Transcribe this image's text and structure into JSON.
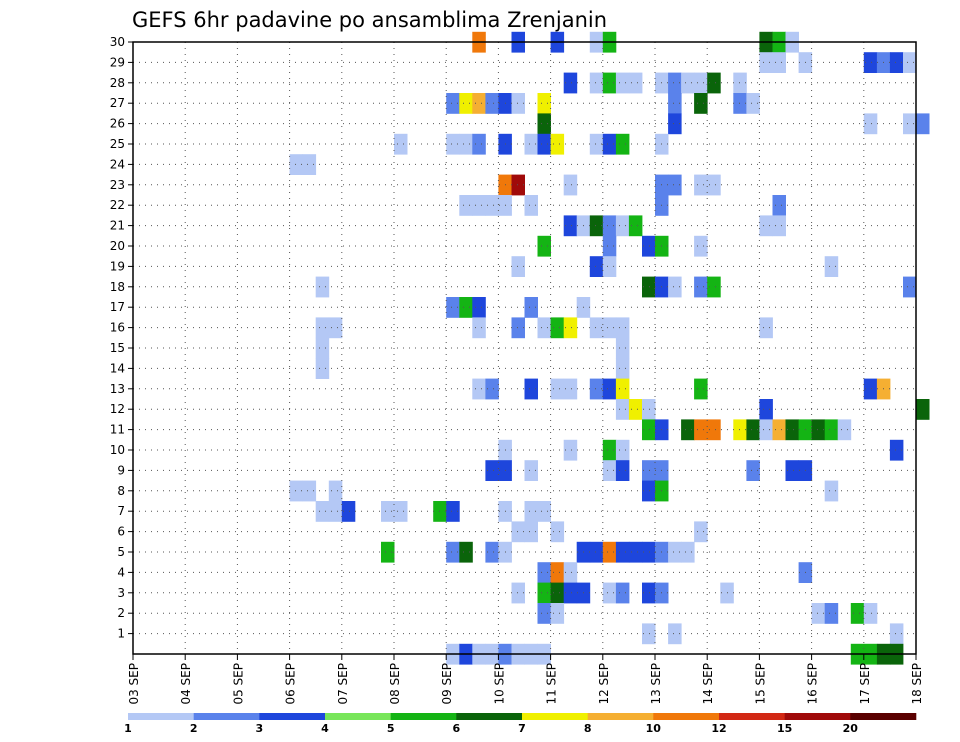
{
  "chart_data": {
    "type": "heatmap",
    "title": "GEFS 6hr padavine po ansamblima Zrenjanin",
    "xlabel": "",
    "ylabel": "",
    "x_ticks": [
      "03 SEP",
      "04 SEP",
      "05 SEP",
      "06 SEP",
      "07 SEP",
      "08 SEP",
      "09 SEP",
      "10 SEP",
      "11 SEP",
      "12 SEP",
      "13 SEP",
      "14 SEP",
      "15 SEP",
      "16 SEP",
      "17 SEP",
      "18 SEP"
    ],
    "y_ticks": [
      1,
      2,
      3,
      4,
      5,
      6,
      7,
      8,
      9,
      10,
      11,
      12,
      13,
      14,
      15,
      16,
      17,
      18,
      19,
      20,
      21,
      22,
      23,
      24,
      25,
      26,
      27,
      28,
      29,
      30
    ],
    "ylim": [
      0,
      30
    ],
    "grid": true,
    "time_step_hours": 6,
    "colorbar": {
      "labels": [
        "1",
        "2",
        "3",
        "4",
        "5",
        "6",
        "7",
        "8",
        "10",
        "12",
        "15",
        "20"
      ],
      "colors": [
        "#b4c8f5",
        "#5a82eb",
        "#1e46dc",
        "#78e65a",
        "#14b414",
        "#0a640a",
        "#f0f000",
        "#f5af32",
        "#f0780a",
        "#d22814",
        "#a00a0a",
        "#5a0000"
      ]
    },
    "cells": [
      [
        30,
        "09 SEP 12",
        10
      ],
      [
        30,
        "10 SEP 06",
        3
      ],
      [
        30,
        "11 SEP 00",
        3
      ],
      [
        30,
        "11 SEP 18",
        1
      ],
      [
        30,
        "12 SEP 00",
        5
      ],
      [
        30,
        "15 SEP 00",
        6
      ],
      [
        30,
        "15 SEP 06",
        5
      ],
      [
        30,
        "15 SEP 12",
        1
      ],
      [
        29,
        "15 SEP 00",
        1
      ],
      [
        29,
        "15 SEP 06",
        1
      ],
      [
        29,
        "15 SEP 18",
        1
      ],
      [
        29,
        "17 SEP 00",
        3
      ],
      [
        29,
        "17 SEP 06",
        2
      ],
      [
        29,
        "17 SEP 12",
        3
      ],
      [
        29,
        "17 SEP 18",
        1
      ],
      [
        28,
        "11 SEP 06",
        3
      ],
      [
        28,
        "11 SEP 18",
        1
      ],
      [
        28,
        "12 SEP 00",
        5
      ],
      [
        28,
        "12 SEP 06",
        1
      ],
      [
        28,
        "12 SEP 12",
        1
      ],
      [
        28,
        "13 SEP 00",
        1
      ],
      [
        28,
        "13 SEP 06",
        2
      ],
      [
        28,
        "13 SEP 12",
        1
      ],
      [
        28,
        "13 SEP 18",
        1
      ],
      [
        28,
        "14 SEP 00",
        6
      ],
      [
        28,
        "14 SEP 12",
        1
      ],
      [
        27,
        "09 SEP 00",
        2
      ],
      [
        27,
        "09 SEP 06",
        7
      ],
      [
        27,
        "09 SEP 12",
        8
      ],
      [
        27,
        "09 SEP 18",
        2
      ],
      [
        27,
        "10 SEP 00",
        3
      ],
      [
        27,
        "10 SEP 06",
        1
      ],
      [
        27,
        "10 SEP 18",
        7
      ],
      [
        27,
        "13 SEP 06",
        2
      ],
      [
        27,
        "13 SEP 18",
        6
      ],
      [
        27,
        "14 SEP 12",
        2
      ],
      [
        27,
        "14 SEP 18",
        1
      ],
      [
        26,
        "10 SEP 18",
        6
      ],
      [
        26,
        "13 SEP 06",
        3
      ],
      [
        26,
        "17 SEP 00",
        1
      ],
      [
        26,
        "17 SEP 18",
        1
      ],
      [
        26,
        "18 SEP 00",
        2
      ],
      [
        25,
        "08 SEP 00",
        1
      ],
      [
        25,
        "09 SEP 00",
        1
      ],
      [
        25,
        "09 SEP 06",
        1
      ],
      [
        25,
        "09 SEP 12",
        2
      ],
      [
        25,
        "10 SEP 00",
        3
      ],
      [
        25,
        "10 SEP 12",
        1
      ],
      [
        25,
        "10 SEP 18",
        3
      ],
      [
        25,
        "11 SEP 00",
        7
      ],
      [
        25,
        "11 SEP 18",
        1
      ],
      [
        25,
        "12 SEP 00",
        3
      ],
      [
        25,
        "12 SEP 06",
        5
      ],
      [
        25,
        "13 SEP 00",
        1
      ],
      [
        24,
        "06 SEP 00",
        1
      ],
      [
        24,
        "06 SEP 06",
        1
      ],
      [
        23,
        "10 SEP 00",
        10
      ],
      [
        23,
        "10 SEP 06",
        15
      ],
      [
        23,
        "11 SEP 06",
        1
      ],
      [
        23,
        "13 SEP 00",
        2
      ],
      [
        23,
        "13 SEP 06",
        2
      ],
      [
        23,
        "13 SEP 18",
        1
      ],
      [
        23,
        "14 SEP 00",
        1
      ],
      [
        22,
        "09 SEP 06",
        1
      ],
      [
        22,
        "09 SEP 12",
        1
      ],
      [
        22,
        "09 SEP 18",
        1
      ],
      [
        22,
        "10 SEP 00",
        1
      ],
      [
        22,
        "10 SEP 12",
        1
      ],
      [
        22,
        "13 SEP 00",
        2
      ],
      [
        22,
        "15 SEP 06",
        2
      ],
      [
        21,
        "11 SEP 06",
        3
      ],
      [
        21,
        "11 SEP 12",
        1
      ],
      [
        21,
        "11 SEP 18",
        6
      ],
      [
        21,
        "12 SEP 00",
        2
      ],
      [
        21,
        "12 SEP 06",
        1
      ],
      [
        21,
        "12 SEP 12",
        5
      ],
      [
        21,
        "15 SEP 00",
        1
      ],
      [
        21,
        "15 SEP 06",
        1
      ],
      [
        20,
        "10 SEP 18",
        5
      ],
      [
        20,
        "12 SEP 00",
        2
      ],
      [
        20,
        "12 SEP 18",
        3
      ],
      [
        20,
        "13 SEP 00",
        5
      ],
      [
        20,
        "13 SEP 18",
        1
      ],
      [
        19,
        "10 SEP 06",
        1
      ],
      [
        19,
        "11 SEP 18",
        3
      ],
      [
        19,
        "12 SEP 00",
        1
      ],
      [
        19,
        "16 SEP 06",
        1
      ],
      [
        18,
        "06 SEP 12",
        1
      ],
      [
        18,
        "12 SEP 18",
        6
      ],
      [
        18,
        "13 SEP 00",
        3
      ],
      [
        18,
        "13 SEP 06",
        1
      ],
      [
        18,
        "13 SEP 18",
        2
      ],
      [
        18,
        "14 SEP 00",
        5
      ],
      [
        18,
        "17 SEP 18",
        2
      ],
      [
        17,
        "09 SEP 00",
        2
      ],
      [
        17,
        "09 SEP 06",
        5
      ],
      [
        17,
        "09 SEP 12",
        3
      ],
      [
        17,
        "10 SEP 12",
        2
      ],
      [
        17,
        "11 SEP 12",
        1
      ],
      [
        16,
        "06 SEP 12",
        1
      ],
      [
        16,
        "06 SEP 18",
        1
      ],
      [
        16,
        "09 SEP 12",
        1
      ],
      [
        16,
        "10 SEP 06",
        2
      ],
      [
        16,
        "10 SEP 18",
        1
      ],
      [
        16,
        "11 SEP 00",
        5
      ],
      [
        16,
        "11 SEP 06",
        7
      ],
      [
        16,
        "11 SEP 18",
        1
      ],
      [
        16,
        "12 SEP 00",
        1
      ],
      [
        16,
        "12 SEP 06",
        1
      ],
      [
        16,
        "15 SEP 00",
        1
      ],
      [
        15,
        "06 SEP 12",
        1
      ],
      [
        15,
        "12 SEP 06",
        1
      ],
      [
        14,
        "06 SEP 12",
        1
      ],
      [
        14,
        "12 SEP 06",
        1
      ],
      [
        13,
        "09 SEP 12",
        1
      ],
      [
        13,
        "09 SEP 18",
        2
      ],
      [
        13,
        "10 SEP 12",
        3
      ],
      [
        13,
        "11 SEP 00",
        1
      ],
      [
        13,
        "11 SEP 06",
        1
      ],
      [
        13,
        "11 SEP 18",
        2
      ],
      [
        13,
        "12 SEP 00",
        3
      ],
      [
        13,
        "12 SEP 06",
        7
      ],
      [
        13,
        "13 SEP 18",
        5
      ],
      [
        13,
        "17 SEP 00",
        3
      ],
      [
        13,
        "17 SEP 06",
        8
      ],
      [
        12,
        "12 SEP 06",
        1
      ],
      [
        12,
        "12 SEP 12",
        7
      ],
      [
        12,
        "12 SEP 18",
        1
      ],
      [
        12,
        "15 SEP 00",
        3
      ],
      [
        12,
        "18 SEP 00",
        6
      ],
      [
        11,
        "12 SEP 18",
        5
      ],
      [
        11,
        "13 SEP 00",
        3
      ],
      [
        11,
        "13 SEP 12",
        6
      ],
      [
        11,
        "13 SEP 18",
        10
      ],
      [
        11,
        "14 SEP 00",
        10
      ],
      [
        11,
        "14 SEP 12",
        7
      ],
      [
        11,
        "14 SEP 18",
        6
      ],
      [
        11,
        "15 SEP 00",
        1
      ],
      [
        11,
        "15 SEP 06",
        8
      ],
      [
        11,
        "15 SEP 12",
        6
      ],
      [
        11,
        "15 SEP 18",
        5
      ],
      [
        11,
        "16 SEP 00",
        6
      ],
      [
        11,
        "16 SEP 06",
        5
      ],
      [
        11,
        "16 SEP 12",
        1
      ],
      [
        10,
        "10 SEP 00",
        1
      ],
      [
        10,
        "11 SEP 06",
        1
      ],
      [
        10,
        "12 SEP 00",
        5
      ],
      [
        10,
        "12 SEP 06",
        1
      ],
      [
        10,
        "17 SEP 12",
        3
      ],
      [
        9,
        "09 SEP 18",
        3
      ],
      [
        9,
        "10 SEP 00",
        3
      ],
      [
        9,
        "10 SEP 12",
        1
      ],
      [
        9,
        "12 SEP 00",
        1
      ],
      [
        9,
        "12 SEP 06",
        3
      ],
      [
        9,
        "12 SEP 18",
        2
      ],
      [
        9,
        "13 SEP 00",
        2
      ],
      [
        9,
        "14 SEP 18",
        2
      ],
      [
        9,
        "15 SEP 12",
        3
      ],
      [
        9,
        "15 SEP 18",
        3
      ],
      [
        8,
        "06 SEP 00",
        1
      ],
      [
        8,
        "06 SEP 06",
        1
      ],
      [
        8,
        "06 SEP 18",
        1
      ],
      [
        8,
        "12 SEP 18",
        3
      ],
      [
        8,
        "13 SEP 00",
        5
      ],
      [
        8,
        "16 SEP 06",
        1
      ],
      [
        7,
        "06 SEP 12",
        1
      ],
      [
        7,
        "06 SEP 18",
        1
      ],
      [
        7,
        "07 SEP 00",
        3
      ],
      [
        7,
        "07 SEP 18",
        1
      ],
      [
        7,
        "08 SEP 00",
        1
      ],
      [
        7,
        "08 SEP 18",
        5
      ],
      [
        7,
        "09 SEP 00",
        3
      ],
      [
        7,
        "10 SEP 00",
        1
      ],
      [
        7,
        "10 SEP 12",
        1
      ],
      [
        7,
        "10 SEP 18",
        1
      ],
      [
        6,
        "10 SEP 06",
        1
      ],
      [
        6,
        "10 SEP 12",
        1
      ],
      [
        6,
        "11 SEP 00",
        1
      ],
      [
        6,
        "13 SEP 18",
        1
      ],
      [
        5,
        "07 SEP 18",
        5
      ],
      [
        5,
        "09 SEP 00",
        2
      ],
      [
        5,
        "09 SEP 06",
        6
      ],
      [
        5,
        "09 SEP 18",
        2
      ],
      [
        5,
        "10 SEP 00",
        1
      ],
      [
        5,
        "11 SEP 12",
        3
      ],
      [
        5,
        "11 SEP 18",
        3
      ],
      [
        5,
        "12 SEP 00",
        10
      ],
      [
        5,
        "12 SEP 06",
        3
      ],
      [
        5,
        "12 SEP 12",
        3
      ],
      [
        5,
        "12 SEP 18",
        3
      ],
      [
        5,
        "13 SEP 00",
        2
      ],
      [
        5,
        "13 SEP 06",
        1
      ],
      [
        5,
        "13 SEP 12",
        1
      ],
      [
        4,
        "10 SEP 18",
        2
      ],
      [
        4,
        "11 SEP 00",
        10
      ],
      [
        4,
        "11 SEP 06",
        1
      ],
      [
        4,
        "15 SEP 18",
        2
      ],
      [
        3,
        "10 SEP 06",
        1
      ],
      [
        3,
        "10 SEP 18",
        5
      ],
      [
        3,
        "11 SEP 00",
        6
      ],
      [
        3,
        "11 SEP 06",
        3
      ],
      [
        3,
        "11 SEP 12",
        3
      ],
      [
        3,
        "12 SEP 00",
        1
      ],
      [
        3,
        "12 SEP 06",
        2
      ],
      [
        3,
        "12 SEP 18",
        3
      ],
      [
        3,
        "13 SEP 00",
        2
      ],
      [
        3,
        "14 SEP 06",
        1
      ],
      [
        2,
        "10 SEP 18",
        2
      ],
      [
        2,
        "11 SEP 00",
        1
      ],
      [
        2,
        "16 SEP 00",
        1
      ],
      [
        2,
        "16 SEP 06",
        2
      ],
      [
        2,
        "16 SEP 18",
        5
      ],
      [
        2,
        "17 SEP 00",
        1
      ],
      [
        1,
        "12 SEP 18",
        1
      ],
      [
        1,
        "13 SEP 06",
        1
      ],
      [
        1,
        "17 SEP 12",
        1
      ],
      [
        0,
        "09 SEP 00",
        1
      ],
      [
        0,
        "09 SEP 06",
        3
      ],
      [
        0,
        "09 SEP 12",
        1
      ],
      [
        0,
        "09 SEP 18",
        1
      ],
      [
        0,
        "10 SEP 00",
        2
      ],
      [
        0,
        "10 SEP 06",
        1
      ],
      [
        0,
        "10 SEP 12",
        1
      ],
      [
        0,
        "10 SEP 18",
        1
      ],
      [
        0,
        "16 SEP 18",
        5
      ],
      [
        0,
        "17 SEP 00",
        5
      ],
      [
        0,
        "17 SEP 06",
        6
      ],
      [
        0,
        "17 SEP 12",
        6
      ]
    ]
  }
}
